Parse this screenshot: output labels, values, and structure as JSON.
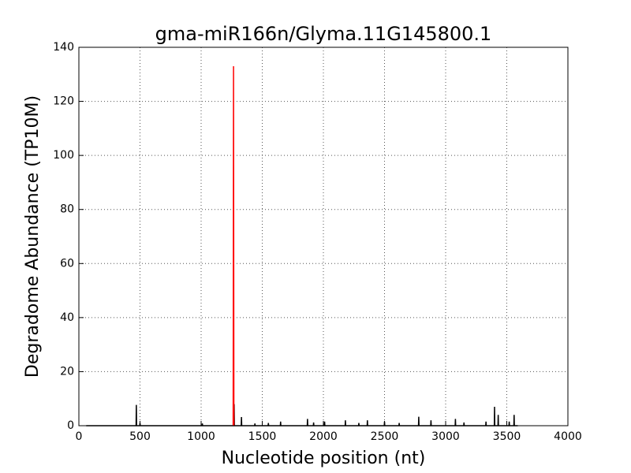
{
  "chart_data": {
    "type": "line",
    "title": "gma-miR166n/Glyma.11G145800.1",
    "x_label": "Nucleotide position (nt)",
    "y_label": "Degradome Abundance (TP10M)",
    "xlim": [
      0,
      4000
    ],
    "xticks": [
      0,
      500,
      1000,
      1500,
      2000,
      2500,
      3000,
      3500,
      4000
    ],
    "ylim": [
      0,
      140
    ],
    "yticks": [
      0,
      20,
      40,
      60,
      80,
      100,
      120,
      140
    ],
    "grid": true,
    "series": [
      {
        "color": "#000000",
        "x": [
          60,
          468,
          470,
          472,
          498,
          500,
          502,
          1008,
          1010,
          1012,
          1268,
          1270,
          1272,
          1328,
          1330,
          1332,
          1438,
          1440,
          1442,
          1548,
          1550,
          1552,
          1648,
          1650,
          1652,
          1868,
          1870,
          1872,
          1918,
          1920,
          1922,
          2008,
          2010,
          2012,
          2178,
          2180,
          2182,
          2288,
          2290,
          2292,
          2358,
          2360,
          2362,
          2498,
          2500,
          2502,
          2618,
          2620,
          2622,
          2778,
          2780,
          2782,
          2878,
          2880,
          2882,
          3078,
          3080,
          3082,
          3148,
          3150,
          3152,
          3328,
          3330,
          3332,
          3398,
          3400,
          3402,
          3428,
          3430,
          3432,
          3518,
          3520,
          3522,
          3558,
          3560,
          3562,
          3590
        ],
        "values": [
          0,
          0,
          7.7,
          0,
          0,
          1,
          0,
          0,
          0.8,
          0,
          0,
          8,
          0,
          0,
          3.2,
          0,
          0,
          0.8,
          0,
          0,
          1,
          0,
          0,
          1.5,
          0,
          0,
          2.5,
          0,
          0,
          1.2,
          0,
          0,
          1.5,
          0,
          0,
          2,
          0,
          0,
          1,
          0,
          0,
          2,
          0,
          0,
          1.5,
          0,
          0,
          1,
          0,
          0,
          3.3,
          0,
          0,
          2,
          0,
          0,
          2.5,
          0,
          0,
          1.2,
          0,
          0,
          1.5,
          0,
          0,
          7,
          0,
          0,
          4,
          0,
          0,
          1.5,
          0,
          0,
          4,
          0,
          0
        ]
      },
      {
        "color": "#ff0000",
        "x": [
          1262,
          1265,
          1268
        ],
        "values": [
          0,
          133,
          0
        ]
      }
    ]
  }
}
